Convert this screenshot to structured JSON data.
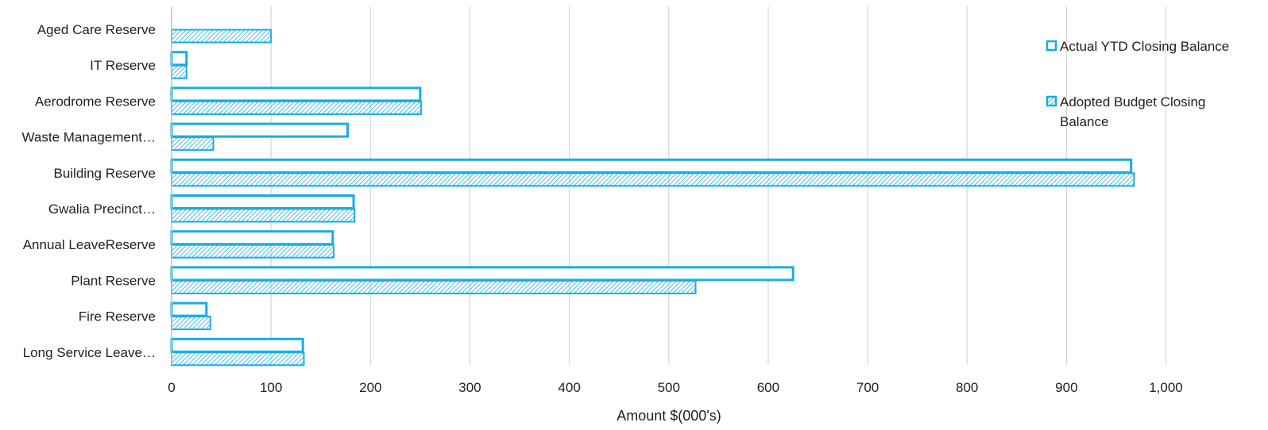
{
  "chart_data": {
    "type": "bar",
    "orientation": "horizontal",
    "categories": [
      "Aged Care Reserve",
      "IT Reserve",
      "Aerodrome Reserve",
      "Waste Management…",
      "Building Reserve",
      "Gwalia Precinct…",
      "Annual LeaveReserve",
      "Plant Reserve",
      "Fire Reserve",
      "Long Service Leave…"
    ],
    "series": [
      {
        "name": "Actual YTD Closing Balance",
        "style": "outline",
        "values": [
          null,
          15,
          250,
          177,
          965,
          183,
          162,
          625,
          35,
          132
        ]
      },
      {
        "name": "Adopted Budget Closing Balance",
        "style": "hatched",
        "values": [
          100,
          15,
          251,
          42,
          968,
          184,
          163,
          527,
          39,
          133
        ]
      }
    ],
    "title": "",
    "xlabel": "Amount $(000's)",
    "ylabel": "",
    "xlim": [
      0,
      1050
    ],
    "xticks": [
      0,
      100,
      200,
      300,
      400,
      500,
      600,
      700,
      800,
      900,
      1000
    ],
    "xtick_labels": [
      "0",
      "100",
      "200",
      "300",
      "400",
      "500",
      "600",
      "700",
      "800",
      "900",
      "1,000"
    ],
    "grid": "vertical",
    "legend_position": "right",
    "colors": {
      "bar": "#17aee2",
      "grid": "#d9d9d9",
      "axis": "#bfbfbf"
    }
  }
}
